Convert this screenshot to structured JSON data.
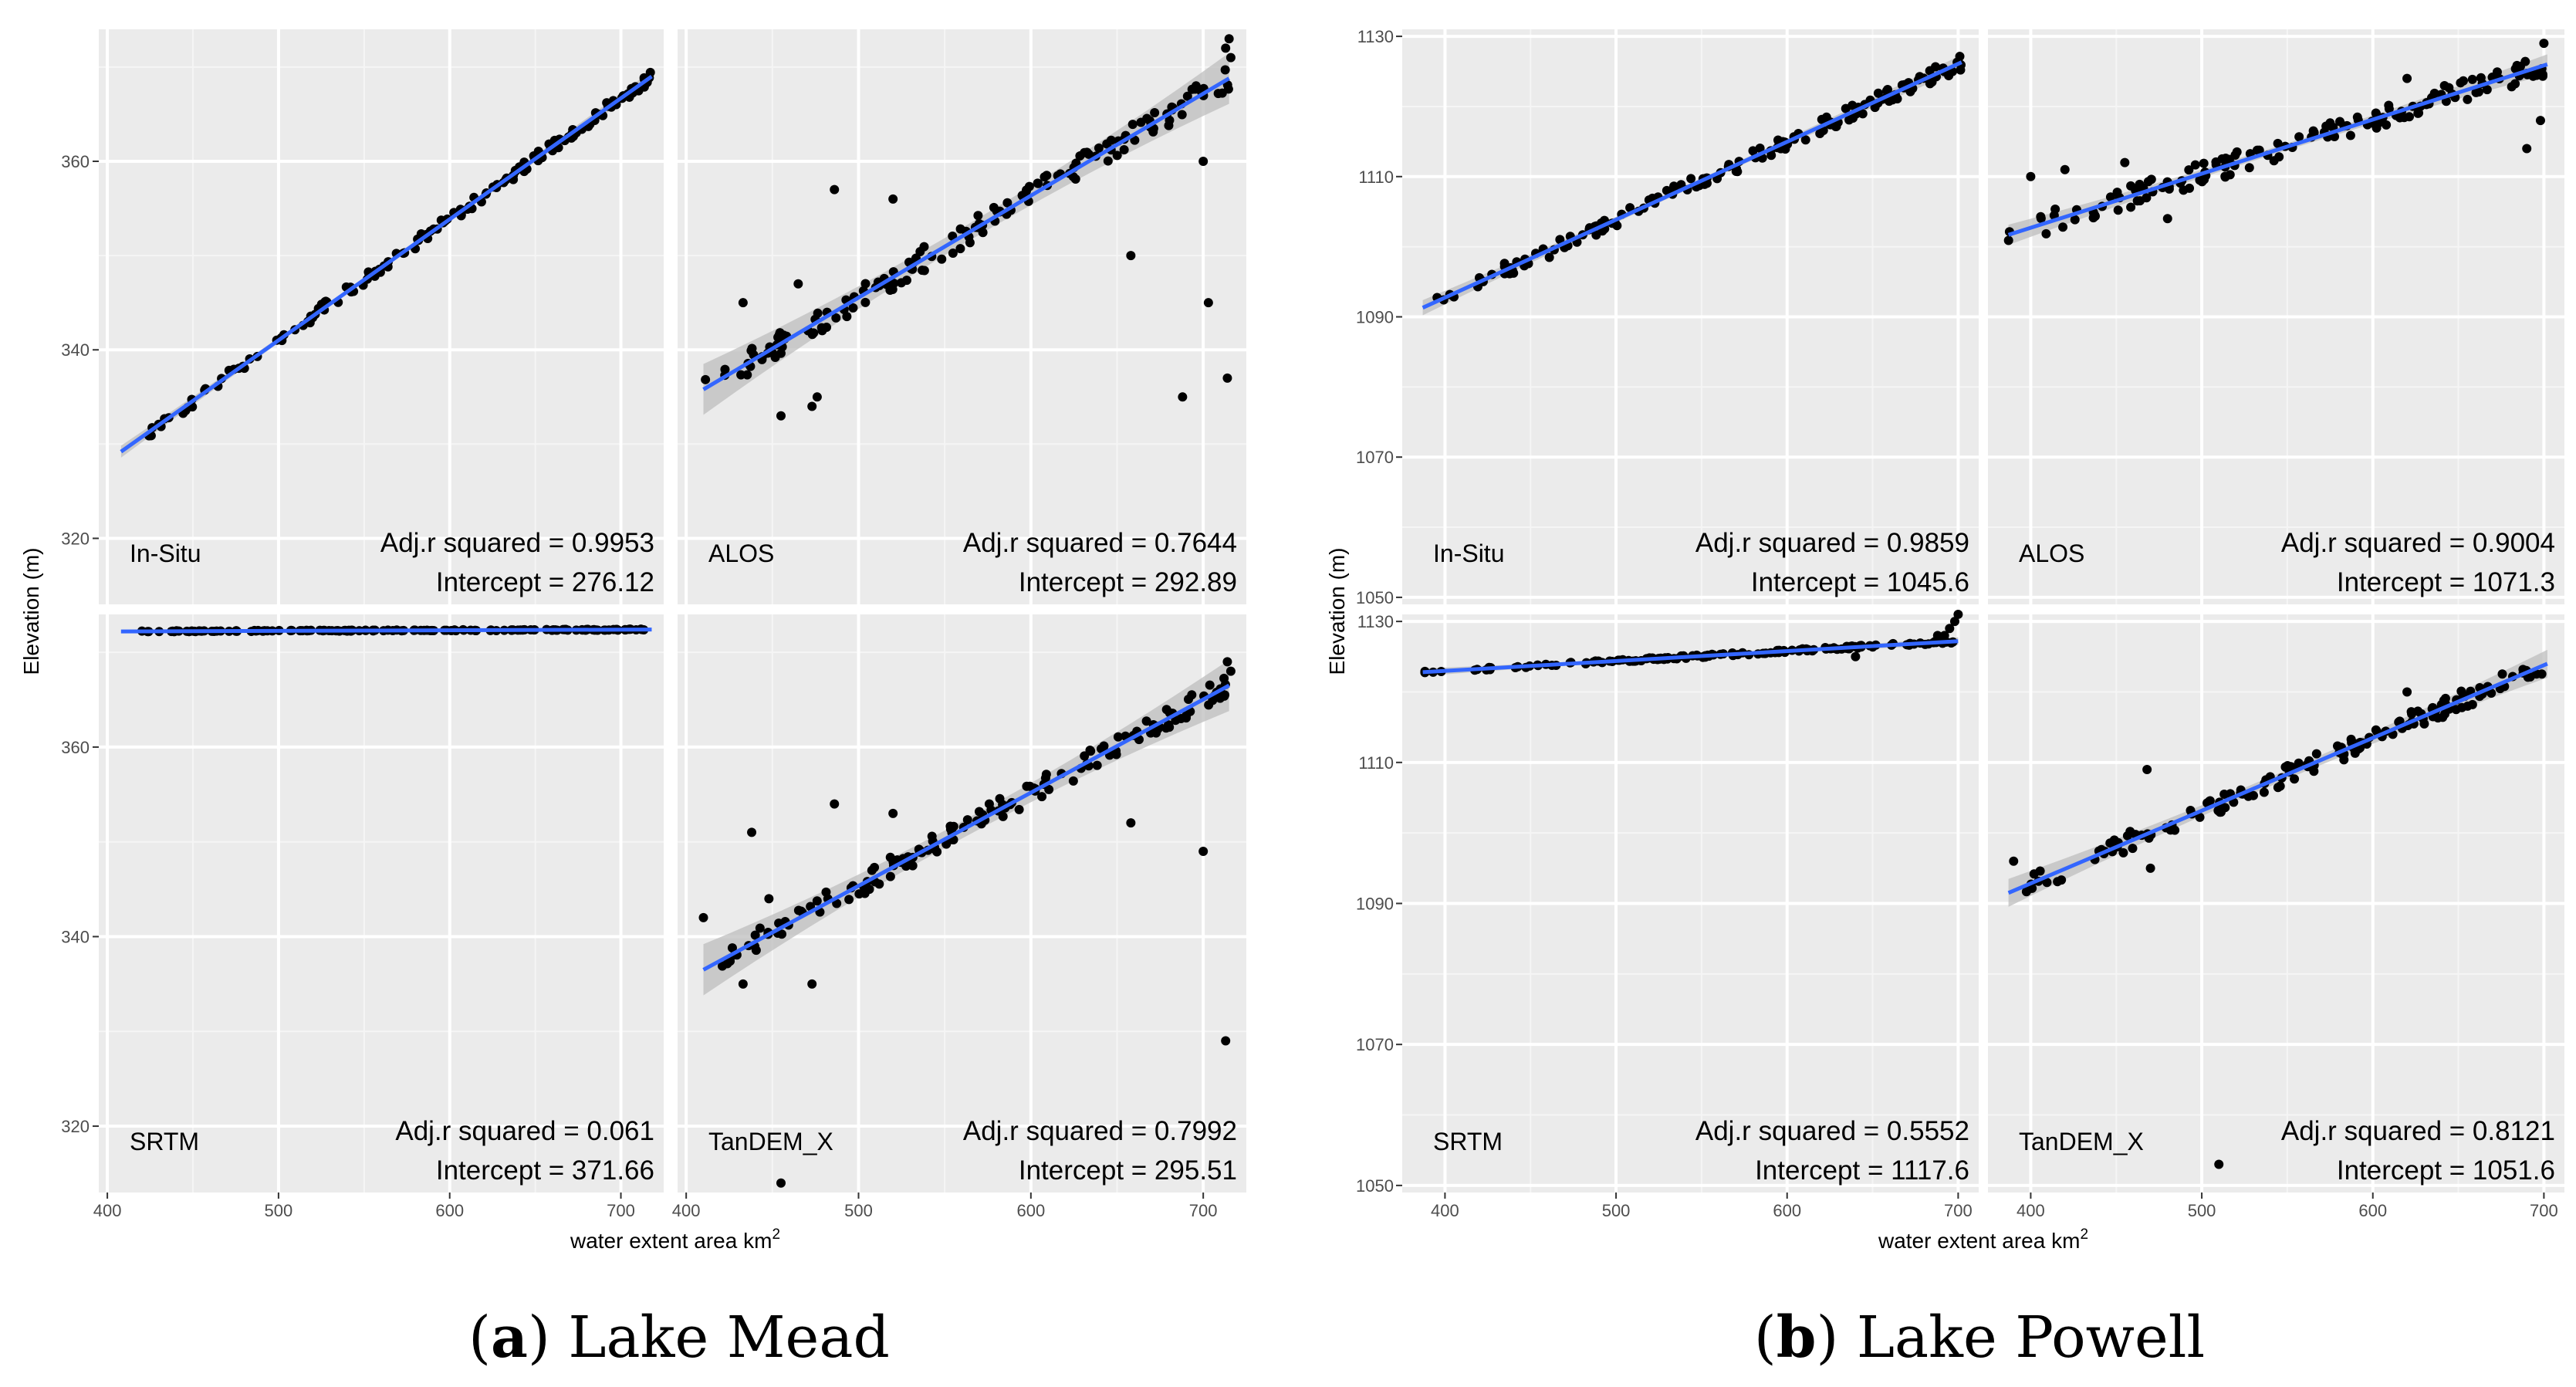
{
  "figures": [
    {
      "panel_letter": "a",
      "caption": "Lake Mead",
      "xlabel": "water extent area km",
      "xlabel_sup": "2",
      "ylabel": "Elevation (m)",
      "xticks": [
        400,
        500,
        600,
        700
      ],
      "yticks": [
        320,
        340,
        360
      ],
      "xlim": [
        395,
        725
      ],
      "ylim": [
        313,
        374
      ]
    },
    {
      "panel_letter": "b",
      "caption": "Lake Powell",
      "xlabel": "water extent area km",
      "xlabel_sup": "2",
      "ylabel": "Elevation (m)",
      "xticks": [
        400,
        500,
        600,
        700
      ],
      "yticks": [
        1050,
        1070,
        1090,
        1110,
        1130
      ],
      "xlim": [
        375,
        712
      ],
      "ylim": [
        1049,
        1131
      ]
    }
  ],
  "chart_data": [
    {
      "type": "scatter",
      "title": "Lake Mead",
      "xlabel": "water extent area km2",
      "ylabel": "Elevation (m)",
      "xlim": [
        395,
        725
      ],
      "ylim": [
        313,
        374
      ],
      "facets": [
        {
          "name": "In-Situ",
          "adj_r_squared": "Adj.r squared = 0.9953",
          "intercept": "Intercept = 276.12",
          "fit": {
            "x0": 408,
            "y0": 329.2,
            "x1": 718,
            "y1": 369.0
          },
          "band": 0.35,
          "seed": 11,
          "noise": 0.6,
          "points": []
        },
        {
          "name": "ALOS",
          "adj_r_squared": "Adj.r squared = 0.7644",
          "intercept": "Intercept = 292.89",
          "fit": {
            "x0": 410,
            "y0": 335.8,
            "x1": 715,
            "y1": 368.8
          },
          "band": 1.5,
          "seed": 23,
          "noise": 1.3,
          "points": [
            [
              433,
              345
            ],
            [
              486,
              357
            ],
            [
              520,
              356
            ],
            [
              465,
              347
            ],
            [
              455,
              333
            ],
            [
              476,
              335
            ],
            [
              658,
              350
            ],
            [
              700,
              360
            ],
            [
              688,
              335
            ],
            [
              703,
              345
            ],
            [
              714,
              337
            ],
            [
              713,
              372
            ],
            [
              715,
              373
            ],
            [
              716,
              371
            ],
            [
              473,
              334
            ]
          ]
        },
        {
          "name": "SRTM",
          "adj_r_squared": "Adj.r squared = 0.061",
          "intercept": "Intercept = 371.66",
          "fit": {
            "x0": 408,
            "y0": 372.2,
            "x1": 718,
            "y1": 372.4
          },
          "band": 0.1,
          "seed": 37,
          "noise": 0.05,
          "points": []
        },
        {
          "name": "TanDEM_X",
          "adj_r_squared": "Adj.r squared = 0.7992",
          "intercept": "Intercept = 295.51",
          "fit": {
            "x0": 410,
            "y0": 336.5,
            "x1": 715,
            "y1": 366.5
          },
          "band": 1.5,
          "seed": 41,
          "noise": 1.2,
          "points": [
            [
              410,
              342
            ],
            [
              438,
              351
            ],
            [
              486,
              354
            ],
            [
              520,
              353
            ],
            [
              473,
              335
            ],
            [
              455,
              314
            ],
            [
              658,
              352
            ],
            [
              700,
              349
            ],
            [
              713,
              329
            ],
            [
              714,
              369
            ],
            [
              716,
              368
            ],
            [
              433,
              335
            ],
            [
              448,
              344
            ]
          ]
        }
      ]
    },
    {
      "type": "scatter",
      "title": "Lake Powell",
      "xlabel": "water extent area km2",
      "ylabel": "Elevation (m)",
      "xlim": [
        375,
        712
      ],
      "ylim": [
        1049,
        1131
      ],
      "facets": [
        {
          "name": "In-Situ",
          "adj_r_squared": "Adj.r squared = 0.9859",
          "intercept": "Intercept = 1045.6",
          "fit": {
            "x0": 387,
            "y0": 1091.3,
            "x1": 702,
            "y1": 1126.3
          },
          "band": 0.6,
          "seed": 53,
          "noise": 1.1,
          "points": []
        },
        {
          "name": "ALOS",
          "adj_r_squared": "Adj.r squared = 0.9004",
          "intercept": "Intercept = 1071.3",
          "fit": {
            "x0": 387,
            "y0": 1101.7,
            "x1": 702,
            "y1": 1126.0
          },
          "band": 0.8,
          "seed": 67,
          "noise": 1.6,
          "points": [
            [
              400,
              1110
            ],
            [
              420,
              1111
            ],
            [
              455,
              1112
            ],
            [
              620,
              1124
            ],
            [
              690,
              1114
            ],
            [
              698,
              1118
            ],
            [
              700,
              1129
            ],
            [
              480,
              1104
            ]
          ]
        },
        {
          "name": "SRTM",
          "adj_r_squared": "Adj.r squared = 0.5552",
          "intercept": "Intercept = 1117.6",
          "fit": {
            "x0": 387,
            "y0": 1122.8,
            "x1": 700,
            "y1": 1127.2
          },
          "band": 0.3,
          "seed": 71,
          "noise": 0.2,
          "points": [
            [
              688,
              1128
            ],
            [
              692,
              1128
            ],
            [
              695,
              1129
            ],
            [
              698,
              1130
            ],
            [
              700,
              1131
            ],
            [
              640,
              1125
            ]
          ]
        },
        {
          "name": "TanDEM_X",
          "adj_r_squared": "Adj.r squared = 0.8121",
          "intercept": "Intercept = 1051.6",
          "fit": {
            "x0": 387,
            "y0": 1091.5,
            "x1": 702,
            "y1": 1124.0
          },
          "band": 1.1,
          "seed": 83,
          "noise": 1.4,
          "points": [
            [
              468,
              1109
            ],
            [
              620,
              1120
            ],
            [
              510,
              1053
            ],
            [
              470,
              1095
            ],
            [
              390,
              1096
            ]
          ]
        }
      ]
    }
  ]
}
